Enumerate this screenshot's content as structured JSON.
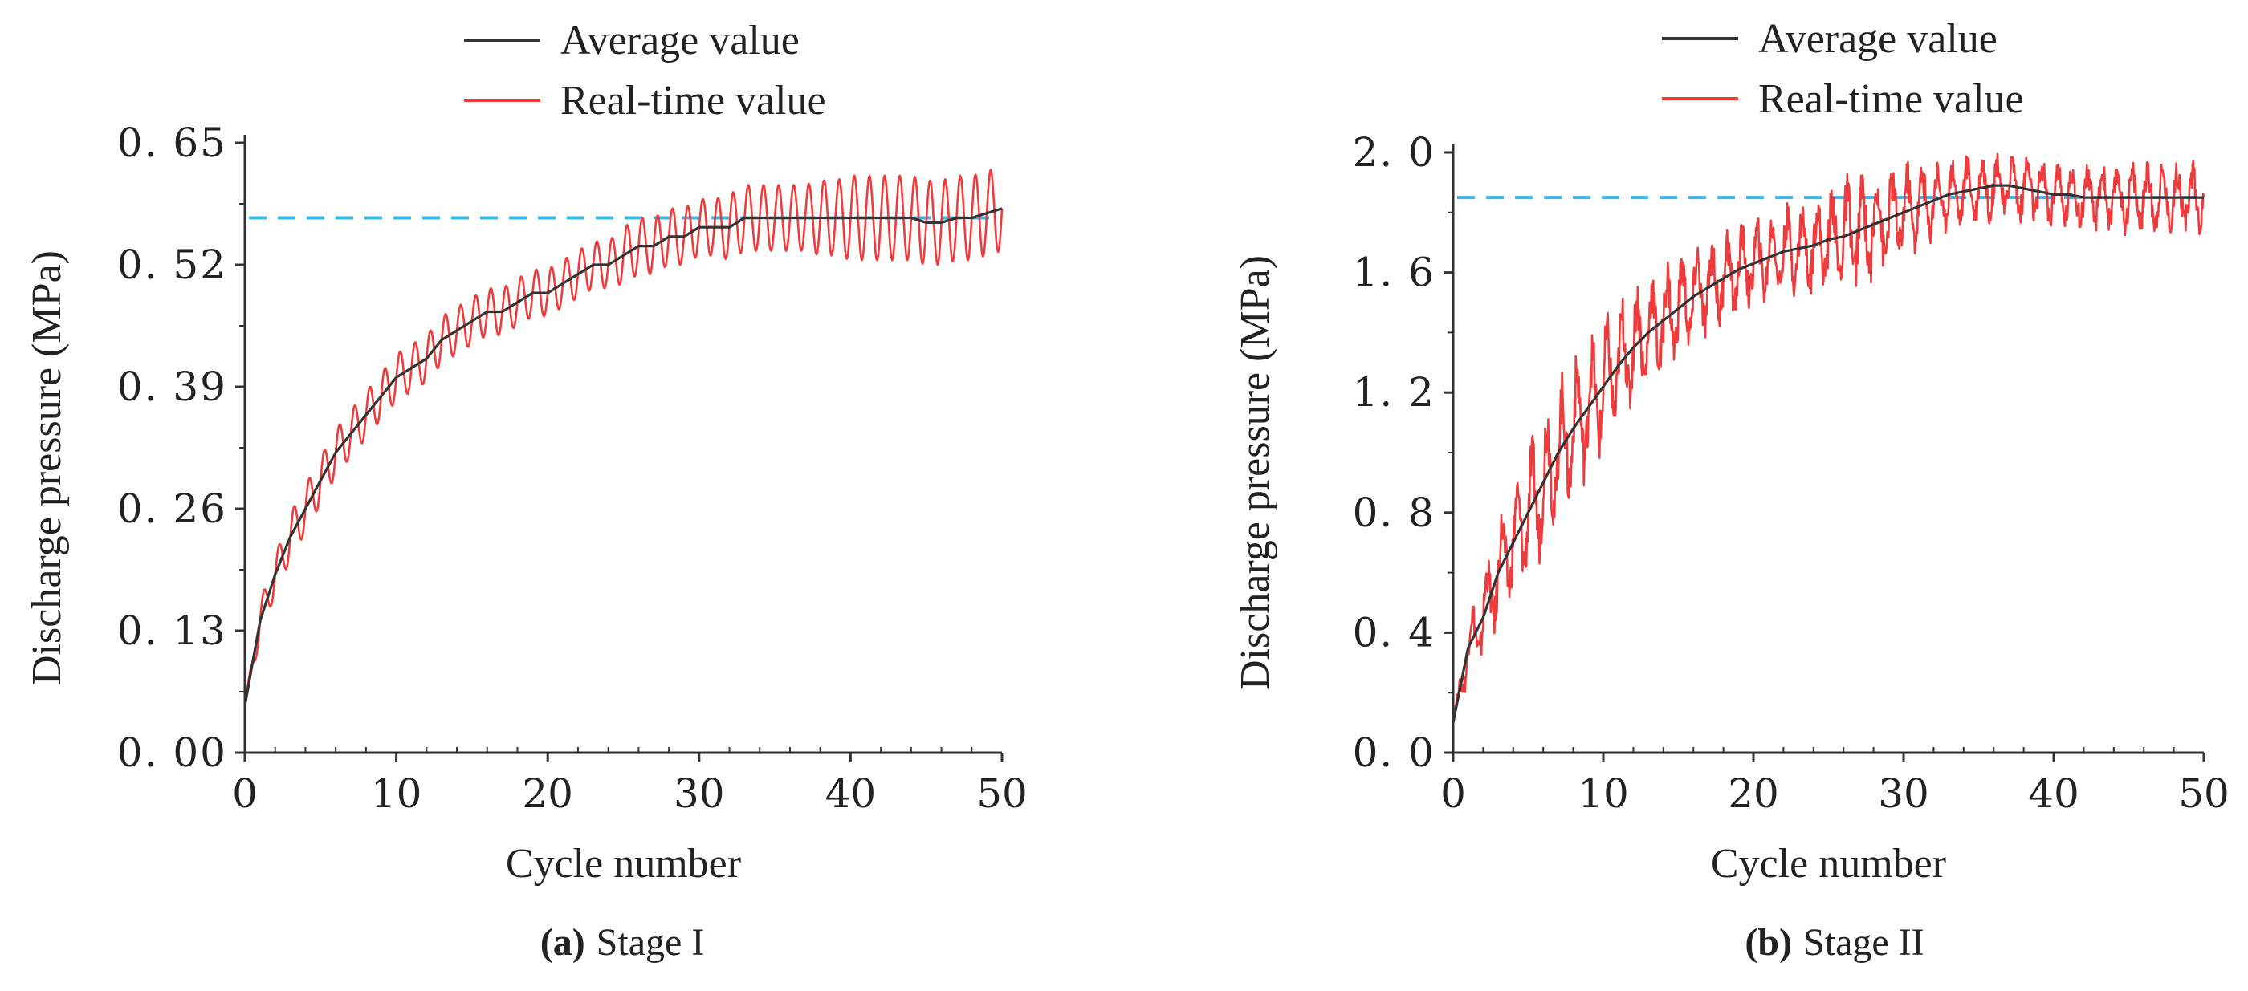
{
  "chart_data": [
    {
      "type": "line",
      "panel": "a",
      "caption_label": "(a)",
      "caption_text": "Stage I",
      "xlabel": "Cycle number",
      "ylabel": "Discharge pressure (MPa)",
      "xlim": [
        0,
        50
      ],
      "ylim": [
        0,
        0.65
      ],
      "xticks": [
        "0",
        "10",
        "20",
        "30",
        "40",
        "50"
      ],
      "yticks": [
        "0. 00",
        "0. 13",
        "0. 26",
        "0. 39",
        "0. 52",
        "0. 65"
      ],
      "x": [
        0,
        1,
        2,
        3,
        4,
        5,
        6,
        7,
        8,
        9,
        10,
        11,
        12,
        13,
        14,
        15,
        16,
        17,
        18,
        19,
        20,
        21,
        22,
        23,
        24,
        25,
        26,
        27,
        28,
        29,
        30,
        31,
        32,
        33,
        34,
        35,
        36,
        37,
        38,
        39,
        40,
        41,
        42,
        43,
        44,
        45,
        46,
        47,
        48,
        49,
        50
      ],
      "series": [
        {
          "name": "Average value",
          "color": "#333333",
          "values": [
            0.05,
            0.14,
            0.19,
            0.23,
            0.26,
            0.29,
            0.32,
            0.34,
            0.36,
            0.38,
            0.4,
            0.41,
            0.42,
            0.44,
            0.45,
            0.46,
            0.47,
            0.47,
            0.48,
            0.49,
            0.49,
            0.5,
            0.51,
            0.52,
            0.52,
            0.53,
            0.54,
            0.54,
            0.55,
            0.55,
            0.56,
            0.56,
            0.56,
            0.57,
            0.57,
            0.57,
            0.57,
            0.57,
            0.57,
            0.57,
            0.57,
            0.57,
            0.57,
            0.57,
            0.57,
            0.565,
            0.565,
            0.57,
            0.57,
            0.575,
            0.58
          ]
        },
        {
          "name": "Real-time value",
          "color": "#ef3b3b",
          "oscillation_amplitude": [
            0.0,
            0.02,
            0.02,
            0.025,
            0.025,
            0.025,
            0.025,
            0.025,
            0.025,
            0.025,
            0.025,
            0.025,
            0.025,
            0.025,
            0.025,
            0.025,
            0.025,
            0.025,
            0.025,
            0.025,
            0.025,
            0.025,
            0.025,
            0.025,
            0.025,
            0.03,
            0.03,
            0.03,
            0.03,
            0.03,
            0.03,
            0.03,
            0.035,
            0.035,
            0.035,
            0.035,
            0.035,
            0.035,
            0.04,
            0.04,
            0.045,
            0.045,
            0.045,
            0.045,
            0.045,
            0.045,
            0.045,
            0.045,
            0.045,
            0.045,
            0.045
          ]
        }
      ],
      "reference_line": {
        "y": 0.57,
        "color": "#3fb6e8"
      }
    },
    {
      "type": "line",
      "panel": "b",
      "caption_label": "(b)",
      "caption_text": "Stage II",
      "xlabel": "Cycle number",
      "ylabel": "Discharge pressure (MPa)",
      "xlim": [
        0,
        50
      ],
      "ylim": [
        0,
        2.0
      ],
      "xticks": [
        "0",
        "10",
        "20",
        "30",
        "40",
        "50"
      ],
      "yticks": [
        "0. 0",
        "0. 4",
        "0. 8",
        "1. 2",
        "1. 6",
        "2. 0"
      ],
      "x": [
        0,
        1,
        2,
        3,
        4,
        5,
        6,
        7,
        8,
        9,
        10,
        11,
        12,
        13,
        14,
        15,
        16,
        17,
        18,
        19,
        20,
        21,
        22,
        23,
        24,
        25,
        26,
        27,
        28,
        29,
        30,
        31,
        32,
        33,
        34,
        35,
        36,
        37,
        38,
        39,
        40,
        41,
        42,
        43,
        44,
        45,
        46,
        47,
        48,
        49,
        50
      ],
      "series": [
        {
          "name": "Average value",
          "color": "#333333",
          "values": [
            0.1,
            0.35,
            0.45,
            0.6,
            0.7,
            0.8,
            0.9,
            1.0,
            1.08,
            1.15,
            1.22,
            1.29,
            1.35,
            1.4,
            1.44,
            1.48,
            1.52,
            1.55,
            1.58,
            1.61,
            1.63,
            1.65,
            1.67,
            1.68,
            1.69,
            1.71,
            1.72,
            1.74,
            1.76,
            1.78,
            1.8,
            1.82,
            1.84,
            1.86,
            1.87,
            1.88,
            1.89,
            1.89,
            1.88,
            1.87,
            1.86,
            1.86,
            1.85,
            1.85,
            1.85,
            1.85,
            1.85,
            1.85,
            1.85,
            1.85,
            1.85
          ]
        },
        {
          "name": "Real-time value",
          "color": "#ef3b3b",
          "oscillation_amplitude": [
            0.0,
            0.08,
            0.1,
            0.12,
            0.12,
            0.14,
            0.16,
            0.16,
            0.16,
            0.15,
            0.15,
            0.14,
            0.14,
            0.13,
            0.13,
            0.12,
            0.12,
            0.11,
            0.11,
            0.1,
            0.1,
            0.1,
            0.1,
            0.1,
            0.11,
            0.12,
            0.13,
            0.13,
            0.13,
            0.12,
            0.11,
            0.1,
            0.09,
            0.08,
            0.08,
            0.08,
            0.08,
            0.08,
            0.08,
            0.08,
            0.08,
            0.08,
            0.08,
            0.08,
            0.08,
            0.08,
            0.08,
            0.08,
            0.08,
            0.08,
            0.08
          ]
        }
      ],
      "reference_line": {
        "y": 1.85,
        "color": "#3fb6e8"
      }
    }
  ]
}
